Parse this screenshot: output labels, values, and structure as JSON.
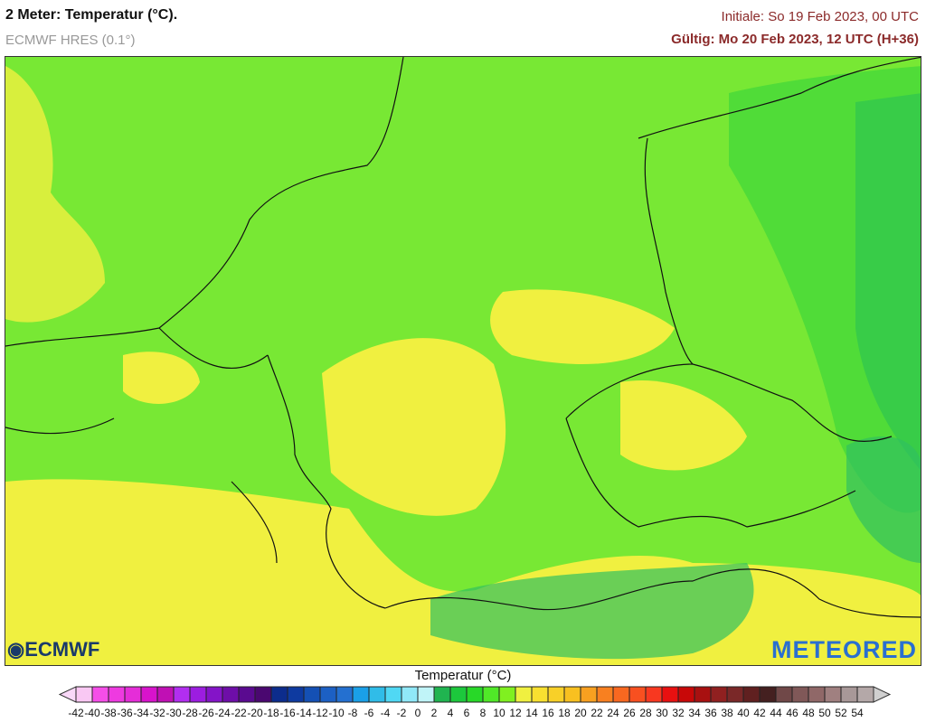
{
  "header": {
    "title": "2 Meter: Temperatur (°C).",
    "model": "ECMWF HRES (0.1°)",
    "init": "Initiale: So 19 Feb 2023, 00 UTC",
    "valid": "Gültig: Mo 20 Feb 2023, 12 UTC (H+36)"
  },
  "logos": {
    "left": "ECMWF",
    "right": "METEORED"
  },
  "legend": {
    "title": "Temperatur (°C)",
    "labels": [
      "-42",
      "-40",
      "-38",
      "-36",
      "-34",
      "-32",
      "-30",
      "-28",
      "-26",
      "-24",
      "-22",
      "-20",
      "-18",
      "-16",
      "-14",
      "-12",
      "-10",
      "-8",
      "-6",
      "-4",
      "-2",
      "0",
      "2",
      "4",
      "6",
      "8",
      "10",
      "12",
      "14",
      "16",
      "18",
      "20",
      "22",
      "24",
      "26",
      "28",
      "30",
      "32",
      "34",
      "36",
      "38",
      "40",
      "42",
      "44",
      "46",
      "48",
      "50",
      "52",
      "54"
    ],
    "colors": [
      "#f9c8f3",
      "#f54ee8",
      "#ee3ae0",
      "#e52dd8",
      "#d813cc",
      "#c010b4",
      "#b22ef0",
      "#9c1de0",
      "#8414c8",
      "#6e0ea8",
      "#5a0a90",
      "#4a0870",
      "#0c2c8c",
      "#0e3aa0",
      "#1450b4",
      "#1c60c4",
      "#2470d0",
      "#1aa0e8",
      "#30bce8",
      "#50d8f4",
      "#90e8f8",
      "#c0f4f8",
      "#20b450",
      "#1cc83c",
      "#28d828",
      "#50e828",
      "#80f020",
      "#f0f040",
      "#f8e030",
      "#f8d028",
      "#f8c020",
      "#f8a020",
      "#f88020",
      "#f86820",
      "#f85020",
      "#f83820",
      "#e81010",
      "#c80808",
      "#a81010",
      "#902020",
      "#7a2828",
      "#602020",
      "#442020",
      "#704848",
      "#805858",
      "#906868",
      "#a08080",
      "#a89898",
      "#b4a8a8"
    ],
    "low_color": "#f9d8f8",
    "high_color": "#d0d0d0"
  },
  "map": {
    "base_color": "#78e834",
    "warm_color": "#f0f040",
    "cool_color": "#40d040",
    "mountain_color": "#30c060"
  }
}
